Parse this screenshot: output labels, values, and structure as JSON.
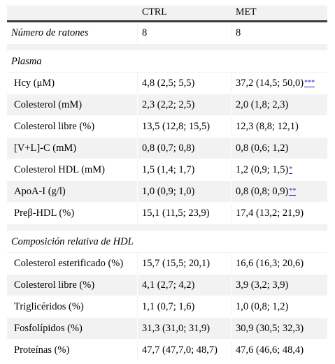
{
  "header": {
    "col1": "",
    "col2": "CTRL",
    "col3": "MET"
  },
  "mice_row": {
    "label": "Número de ratones",
    "ctrl": "8",
    "met": "8"
  },
  "plasma": {
    "title": "Plasma",
    "rows": [
      {
        "label": "Hcy (μM)",
        "ctrl": "4,8 (2,5; 5,5)",
        "met": "37,2 (14,5; 50,0)",
        "sig": "***"
      },
      {
        "label": "Colesterol (mM)",
        "ctrl": "2,3 (2,2; 2,5)",
        "met": "2,0 (1,8; 2,3)",
        "sig": ""
      },
      {
        "label": "Colesterol libre (%)",
        "ctrl": "13,5 (12,8; 15,5)",
        "met": "12,3 (8,8; 12,1)",
        "sig": ""
      },
      {
        "label": "[V+L]-C (mM)",
        "ctrl": "0,8 (0,7; 0,8)",
        "met": "0,8 (0,6; 1,2)",
        "sig": ""
      },
      {
        "label": "Colesterol HDL (mM)",
        "ctrl": "1,5 (1,4; 1,7)",
        "met": "1,2 (0,9; 1,5)",
        "sig": "*"
      },
      {
        "label": "ApoA-I (g/l)",
        "ctrl": "1,0 (0,9; 1,0)",
        "met": "0,8 (0,8; 0,9)",
        "sig": "**"
      },
      {
        "label": "Preβ-HDL (%)",
        "ctrl": "15,1 (11,5; 23,9)",
        "met": "17,4 (13,2; 21,9)",
        "sig": ""
      }
    ]
  },
  "hdl": {
    "title": "Composición relativa de HDL",
    "rows": [
      {
        "label": "Colesterol esterificado (%)",
        "ctrl": "15,7 (15,5; 20,1)",
        "met": "16,6 (16,3; 20,6)"
      },
      {
        "label": "Colesterol libre (%)",
        "ctrl": "4,1 (2,7; 4,2)",
        "met": "3,9 (3,2; 3,9)"
      },
      {
        "label": "Triglicéridos (%)",
        "ctrl": "1,1 (0,7; 1,6)",
        "met": "1,0 (0,8; 1,2)"
      },
      {
        "label": "Fosfolípidos (%)",
        "ctrl": "31,3 (31,0; 31,9)",
        "met": "30,9 (30,5; 32,3)"
      },
      {
        "label": "Proteínas (%)",
        "ctrl": "47,7 (47,7,0; 48,7)",
        "met": "47,6 (46,6; 48,4)"
      }
    ]
  }
}
